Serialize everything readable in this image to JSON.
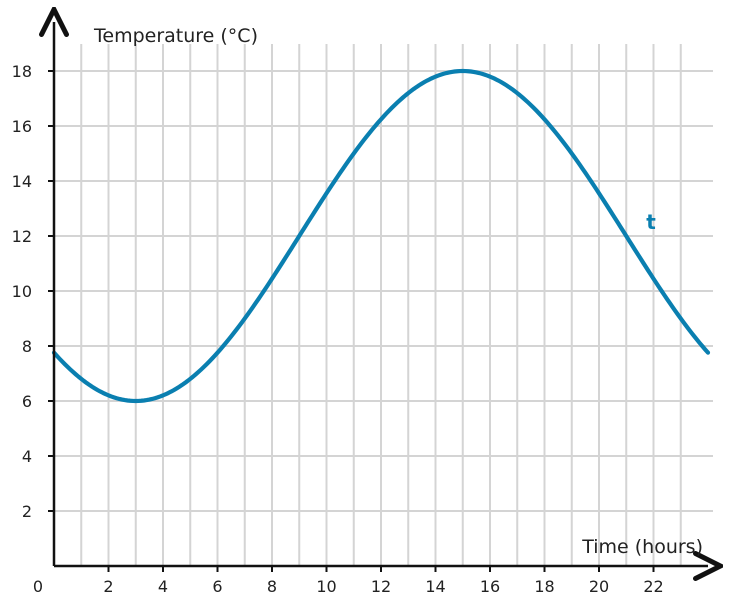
{
  "chart_data": {
    "type": "line",
    "xlabel": "Time (hours)",
    "ylabel": "Temperature (°C)",
    "xlim": [
      0,
      24
    ],
    "ylim": [
      0,
      19.5
    ],
    "x_ticks": [
      2,
      4,
      6,
      8,
      10,
      12,
      14,
      16,
      18,
      20,
      22
    ],
    "y_ticks": [
      2,
      4,
      6,
      8,
      10,
      12,
      14,
      16,
      18
    ],
    "origin_label": "0",
    "grid": true,
    "series": [
      {
        "name": "t",
        "color": "#0a7fb0",
        "x": [
          0,
          1,
          2,
          3,
          4,
          5,
          6,
          7,
          8,
          9,
          10,
          11,
          12,
          13,
          14,
          15,
          16,
          17,
          18,
          19,
          20,
          21,
          22,
          23,
          24
        ],
        "y": [
          7.76,
          6.76,
          6.18,
          6.0,
          6.18,
          6.76,
          7.76,
          9.12,
          10.76,
          12.57,
          14.42,
          16.24,
          16.24,
          17.24,
          17.82,
          18.0,
          17.82,
          17.24,
          16.24,
          14.88,
          13.24,
          11.43,
          9.58,
          8.52,
          7.76
        ]
      }
    ]
  }
}
